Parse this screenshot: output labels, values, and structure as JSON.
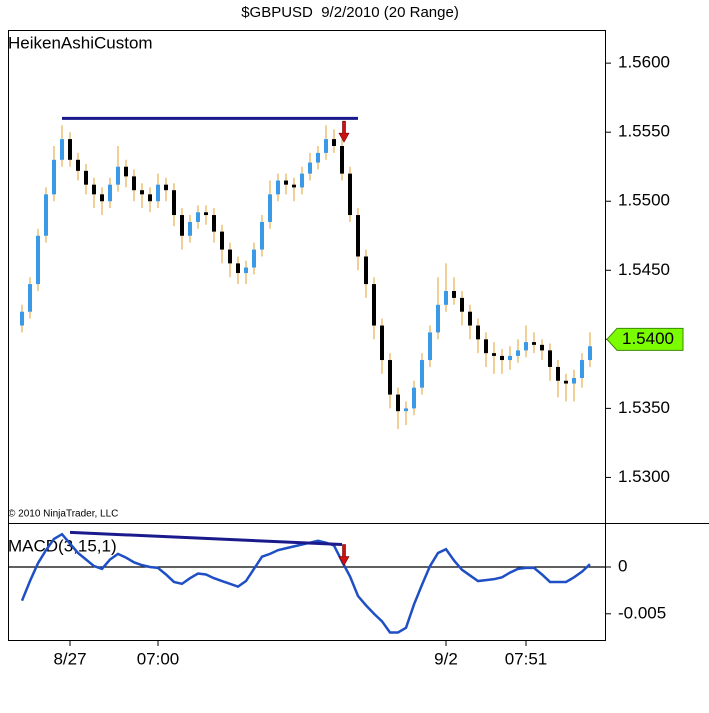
{
  "chart_data": [
    {
      "type": "candlestick",
      "title": "$GBPUSD  9/2/2010 (20 Range)",
      "label": "HeikenAshiCustom",
      "copyright": "© 2010 NinjaTrader, LLC",
      "up_color": "#3a9ae8",
      "down_color": "#000000",
      "wick_color": "#e0a030",
      "open": [
        1.541,
        1.542,
        1.544,
        1.5475,
        1.5505,
        1.553,
        1.5545,
        1.553,
        1.5522,
        1.5512,
        1.5505,
        1.55,
        1.5512,
        1.5525,
        1.5518,
        1.5508,
        1.5505,
        1.55,
        1.5512,
        1.5508,
        1.549,
        1.5475,
        1.5485,
        1.5492,
        1.549,
        1.5478,
        1.5465,
        1.5455,
        1.5448,
        1.5452,
        1.5465,
        1.5485,
        1.5505,
        1.5515,
        1.5512,
        1.551,
        1.552,
        1.5528,
        1.5535,
        1.5545,
        1.554,
        1.552,
        1.549,
        1.546,
        1.544,
        1.541,
        1.5385,
        1.536,
        1.5348,
        1.535,
        1.5365,
        1.5385,
        1.5405,
        1.5425,
        1.5435,
        1.543,
        1.542,
        1.541,
        1.54,
        1.539,
        1.5388,
        1.5385,
        1.5388,
        1.5392,
        1.5398,
        1.5396,
        1.5392,
        1.538,
        1.537,
        1.5368,
        1.5372,
        1.5385
      ],
      "high": [
        1.5425,
        1.5445,
        1.548,
        1.551,
        1.554,
        1.5555,
        1.555,
        1.5535,
        1.5527,
        1.5517,
        1.551,
        1.5517,
        1.554,
        1.553,
        1.5523,
        1.5513,
        1.551,
        1.552,
        1.5517,
        1.5513,
        1.5495,
        1.549,
        1.5497,
        1.5497,
        1.5495,
        1.5483,
        1.547,
        1.546,
        1.5457,
        1.547,
        1.549,
        1.5515,
        1.552,
        1.552,
        1.5517,
        1.5525,
        1.5535,
        1.554,
        1.5555,
        1.5552,
        1.5545,
        1.5525,
        1.5495,
        1.5465,
        1.5445,
        1.5415,
        1.539,
        1.5365,
        1.5355,
        1.537,
        1.539,
        1.541,
        1.5445,
        1.5455,
        1.5445,
        1.5435,
        1.5425,
        1.5415,
        1.5405,
        1.5398,
        1.5393,
        1.5395,
        1.54,
        1.541,
        1.5405,
        1.54,
        1.5397,
        1.5385,
        1.5375,
        1.5378,
        1.539,
        1.5405
      ],
      "low": [
        1.5405,
        1.5415,
        1.5435,
        1.547,
        1.55,
        1.5525,
        1.5525,
        1.5515,
        1.5505,
        1.5495,
        1.549,
        1.5495,
        1.5507,
        1.551,
        1.55,
        1.5495,
        1.5492,
        1.5495,
        1.55,
        1.5482,
        1.5465,
        1.547,
        1.548,
        1.5483,
        1.547,
        1.5455,
        1.5445,
        1.544,
        1.544,
        1.5447,
        1.546,
        1.548,
        1.55,
        1.5505,
        1.55,
        1.5505,
        1.5515,
        1.5523,
        1.553,
        1.5535,
        1.5515,
        1.5485,
        1.545,
        1.543,
        1.54,
        1.5375,
        1.535,
        1.5335,
        1.5338,
        1.5345,
        1.536,
        1.538,
        1.54,
        1.542,
        1.5425,
        1.541,
        1.54,
        1.539,
        1.538,
        1.5375,
        1.5375,
        1.5378,
        1.5383,
        1.5387,
        1.539,
        1.5385,
        1.537,
        1.5358,
        1.5355,
        1.5355,
        1.5365,
        1.538
      ],
      "close": [
        1.542,
        1.544,
        1.5475,
        1.5505,
        1.553,
        1.5545,
        1.553,
        1.5522,
        1.5512,
        1.5505,
        1.55,
        1.5512,
        1.5525,
        1.5518,
        1.5508,
        1.5505,
        1.55,
        1.5512,
        1.5508,
        1.549,
        1.5475,
        1.5485,
        1.5492,
        1.549,
        1.5478,
        1.5465,
        1.5455,
        1.5448,
        1.5452,
        1.5465,
        1.5485,
        1.5505,
        1.5515,
        1.5512,
        1.551,
        1.552,
        1.5528,
        1.5535,
        1.5545,
        1.554,
        1.552,
        1.549,
        1.546,
        1.544,
        1.541,
        1.5385,
        1.536,
        1.5348,
        1.535,
        1.5365,
        1.5385,
        1.5405,
        1.5425,
        1.5435,
        1.543,
        1.542,
        1.541,
        1.54,
        1.539,
        1.5388,
        1.5385,
        1.5388,
        1.5392,
        1.5398,
        1.5396,
        1.5392,
        1.538,
        1.537,
        1.5368,
        1.5372,
        1.5385,
        1.5395
      ],
      "ylim": [
        1.5267,
        1.5624
      ],
      "yticks": [
        {
          "value": 1.53,
          "label": "1.5300"
        },
        {
          "value": 1.535,
          "label": "1.5350"
        },
        {
          "value": 1.54,
          "label": "1.5400"
        },
        {
          "value": 1.545,
          "label": "1.5450"
        },
        {
          "value": 1.55,
          "label": "1.5500"
        },
        {
          "value": 1.555,
          "label": "1.5550"
        },
        {
          "value": 1.56,
          "label": "1.5600"
        }
      ],
      "last_price": {
        "value": 1.54,
        "label": "1.5400",
        "color": "#7cfc00"
      },
      "trend_lines": [
        {
          "x": [
            5,
            42
          ],
          "values": [
            1.556,
            1.556
          ],
          "color": "#1a1a8c"
        }
      ],
      "signals": [
        {
          "x": 40,
          "value": 1.5558,
          "color": "#d01010"
        }
      ]
    },
    {
      "type": "line",
      "label": "MACD(3,15,1)",
      "color": "#1f4fc4",
      "categories": [
        null,
        null,
        null,
        null,
        null,
        null,
        "8/27",
        null,
        null,
        null,
        null,
        null,
        null,
        null,
        null,
        null,
        null,
        "07:00",
        null,
        null,
        null,
        null,
        null,
        null,
        null,
        null,
        null,
        null,
        null,
        null,
        null,
        null,
        null,
        null,
        null,
        null,
        null,
        null,
        null,
        null,
        null,
        null,
        null,
        null,
        null,
        null,
        null,
        null,
        null,
        null,
        null,
        null,
        null,
        "9/2",
        null,
        null,
        null,
        null,
        null,
        null,
        null,
        null,
        null,
        "07:51",
        null,
        null,
        null,
        null,
        null,
        null,
        null,
        null
      ],
      "values": [
        -0.0036,
        -0.0015,
        0.0004,
        0.0018,
        0.003,
        0.0035,
        0.0025,
        0.0015,
        0.0008,
        0.0001,
        -0.0002,
        0.0008,
        0.0014,
        0.001,
        0.0005,
        0.0002,
        0.0,
        -0.0001,
        -0.0008,
        -0.0016,
        -0.0018,
        -0.0012,
        -0.0007,
        -0.0008,
        -0.0012,
        -0.0015,
        -0.0018,
        -0.0021,
        -0.0015,
        -0.0002,
        0.0011,
        0.0014,
        0.0018,
        0.002,
        0.0022,
        0.0024,
        0.0026,
        0.0028,
        0.0026,
        0.0023,
        0.0006,
        -0.001,
        -0.0031,
        -0.0041,
        -0.005,
        -0.0058,
        -0.007,
        -0.007,
        -0.0065,
        -0.004,
        -0.0019,
        0.0001,
        0.0015,
        0.0019,
        0.0007,
        -0.0003,
        -0.0009,
        -0.0015,
        -0.0014,
        -0.0013,
        -0.0011,
        -0.0006,
        -0.0002,
        -0.0001,
        -0.0001,
        -0.0008,
        -0.0016,
        -0.0016,
        -0.0016,
        -0.0011,
        -0.0005,
        0.0003
      ],
      "ylim": [
        -0.0078,
        0.0047
      ],
      "yticks": [
        -0.005,
        0
      ],
      "trend_lines": [
        {
          "x": [
            6,
            40
          ],
          "values": [
            0.0037,
            0.0024
          ],
          "color": "#1a1a8c"
        }
      ],
      "signals": [
        {
          "x": 40,
          "value": 0.0024,
          "color": "#d01010"
        }
      ]
    }
  ]
}
